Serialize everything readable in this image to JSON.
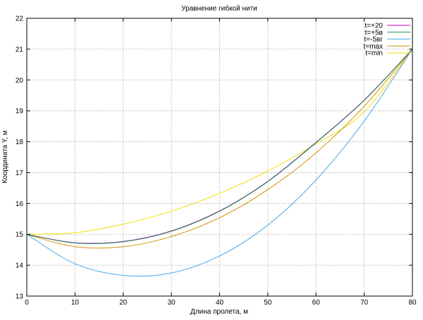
{
  "chart_data": {
    "type": "line",
    "title": "Уравнение гибкой нити",
    "xlabel": "Длина пролета, м",
    "ylabel": "Координата Y, м",
    "xlim": [
      0,
      80
    ],
    "ylim": [
      13,
      22
    ],
    "x_ticks": [
      0,
      10,
      20,
      30,
      40,
      50,
      60,
      70,
      80
    ],
    "y_ticks": [
      13,
      14,
      15,
      16,
      17,
      18,
      19,
      20,
      21,
      22
    ],
    "x_tick_labels": [
      "0",
      "10",
      "20",
      "30",
      "40",
      "50",
      "60",
      "70",
      "80"
    ],
    "y_tick_labels": [
      "13",
      "14",
      "15",
      "16",
      "17",
      "18",
      "19",
      "20",
      "21",
      "22"
    ],
    "grid": true,
    "legend_position": "top-right",
    "x": [
      0,
      10,
      20,
      30,
      40,
      50,
      60,
      70,
      80
    ],
    "series": [
      {
        "name": "t=+20",
        "color": "#c800c8",
        "values": [
          15.0,
          14.73,
          14.77,
          15.11,
          15.76,
          16.72,
          17.98,
          19.35,
          21.0
        ]
      },
      {
        "name": "t=+5в",
        "color": "#1a8a4a",
        "values": [
          15.0,
          14.72,
          14.76,
          15.1,
          15.75,
          16.71,
          17.97,
          19.34,
          21.0
        ]
      },
      {
        "name": "t=-5вг",
        "color": "#4aa8e8",
        "values": [
          15.0,
          14.05,
          13.67,
          13.75,
          14.3,
          15.3,
          16.76,
          18.67,
          21.0
        ]
      },
      {
        "name": "t=max",
        "color": "#d89000",
        "values": [
          15.0,
          14.6,
          14.6,
          14.93,
          15.54,
          16.45,
          17.64,
          19.15,
          21.0
        ]
      },
      {
        "name": "t=min",
        "color": "#f0e000",
        "values": [
          15.0,
          15.05,
          15.33,
          15.75,
          16.33,
          17.05,
          17.93,
          18.97,
          21.0
        ]
      }
    ]
  }
}
